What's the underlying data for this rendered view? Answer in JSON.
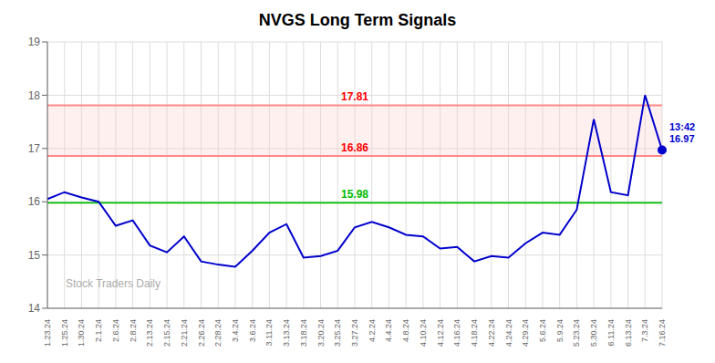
{
  "chart_data": {
    "type": "line",
    "title": "NVGS Long Term Signals",
    "categories": [
      "1.23.24",
      "1.25.24",
      "1.30.24",
      "2.1.24",
      "2.6.24",
      "2.8.24",
      "2.13.24",
      "2.15.24",
      "2.21.24",
      "2.26.24",
      "2.28.24",
      "3.4.24",
      "3.6.24",
      "3.11.24",
      "3.13.24",
      "3.18.24",
      "3.20.24",
      "3.25.24",
      "3.27.24",
      "4.2.24",
      "4.4.24",
      "4.8.24",
      "4.10.24",
      "4.12.24",
      "4.16.24",
      "4.18.24",
      "4.22.24",
      "4.24.24",
      "4.29.24",
      "5.6.24",
      "5.9.24",
      "5.23.24",
      "5.30.24",
      "6.11.24",
      "6.13.24",
      "7.3.24",
      "7.16.24"
    ],
    "values": [
      16.05,
      16.18,
      16.08,
      16.0,
      15.55,
      15.65,
      15.18,
      15.05,
      15.35,
      14.88,
      14.82,
      14.78,
      15.08,
      15.42,
      15.58,
      14.95,
      14.98,
      15.08,
      15.52,
      15.62,
      15.52,
      15.38,
      15.35,
      15.12,
      15.15,
      14.88,
      14.98,
      14.95,
      15.22,
      15.42,
      15.38,
      15.85,
      17.55,
      16.18,
      16.12,
      18.0,
      16.97
    ],
    "color": "#0000cc",
    "ylim": [
      14,
      19
    ],
    "yticks": [
      14,
      15,
      16,
      17,
      18,
      19
    ],
    "grid": true,
    "reference_lines": [
      {
        "y": 15.98,
        "label": "15.98",
        "color": "#00bb00",
        "label_color": "#00bb00"
      },
      {
        "y": 17.81,
        "label": "17.81",
        "color": "#ff8888",
        "label_color": "red"
      },
      {
        "y": 16.86,
        "label": "16.86",
        "color": "#ff8888",
        "label_color": "red"
      }
    ],
    "band": {
      "from": 16.86,
      "to": 17.81,
      "color": "#ffcccc"
    },
    "last_point_label": {
      "lines": [
        "13:42",
        "16.97"
      ],
      "color": "#0000cc"
    },
    "watermark": "Stock Traders Daily"
  }
}
